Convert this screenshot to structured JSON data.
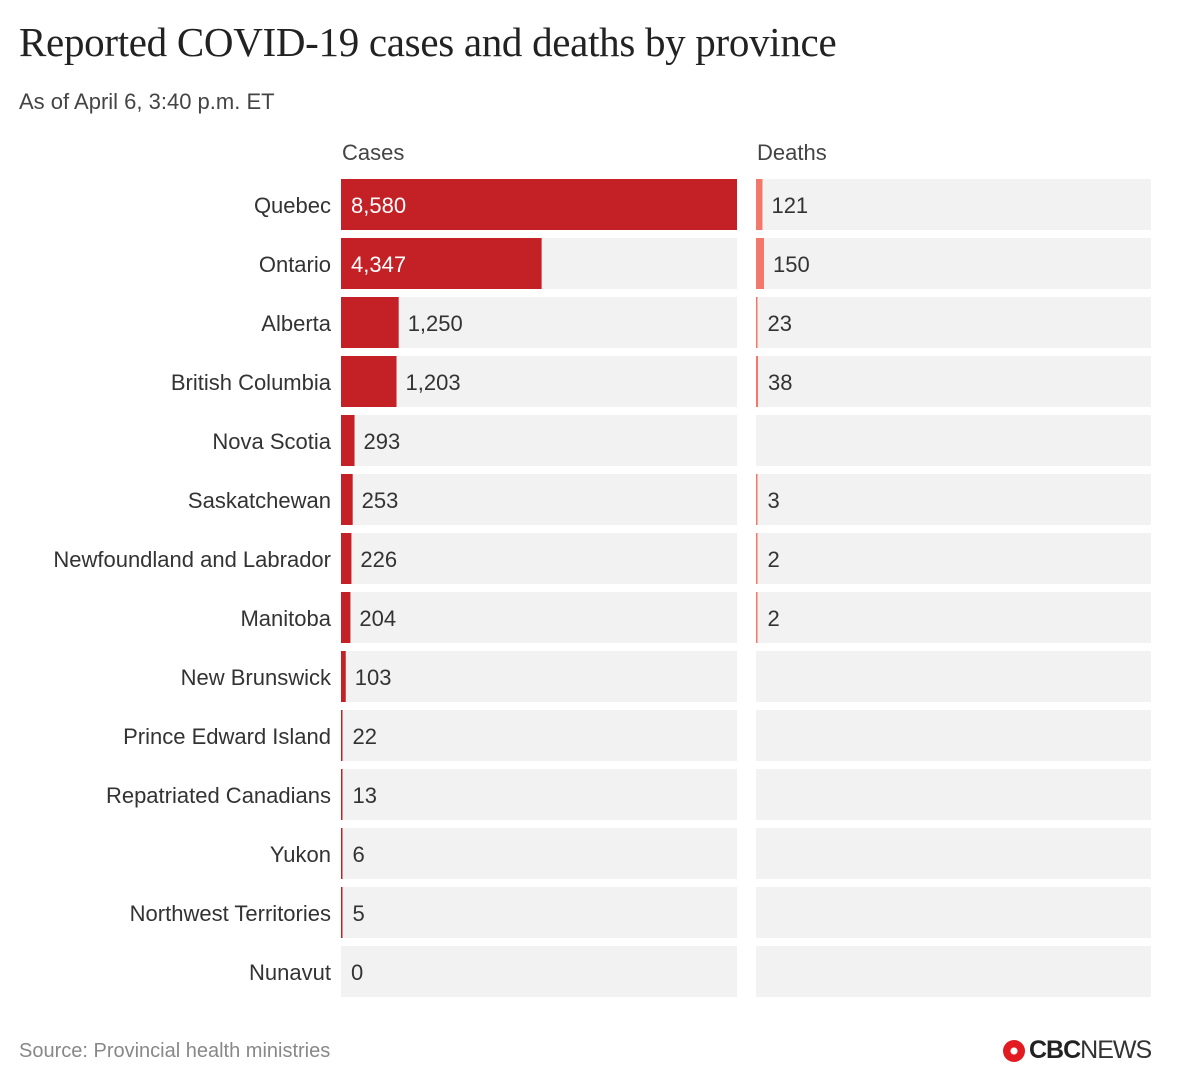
{
  "title": "Reported COVID-19 cases and deaths by province",
  "subtitle": "As of April 6, 3:40 p.m. ET",
  "source": "Source: Provincial health ministries",
  "logo": {
    "brand": "CBC",
    "suffix": "NEWS"
  },
  "colors": {
    "cases": "#c42127",
    "deaths": "#f4776b",
    "background_band": "#f2f2f2"
  },
  "chart_data": {
    "type": "bar",
    "orientation": "horizontal",
    "categories": [
      "Quebec",
      "Ontario",
      "Alberta",
      "British Columbia",
      "Nova Scotia",
      "Saskatchewan",
      "Newfoundland and Labrador",
      "Manitoba",
      "New Brunswick",
      "Prince Edward Island",
      "Repatriated Canadians",
      "Yukon",
      "Northwest Territories",
      "Nunavut"
    ],
    "series": [
      {
        "name": "Cases",
        "values": [
          8580,
          4347,
          1250,
          1203,
          293,
          253,
          226,
          204,
          103,
          22,
          13,
          6,
          5,
          0
        ],
        "labels": [
          "8,580",
          "4,347",
          "1,250",
          "1,203",
          "293",
          "253",
          "226",
          "204",
          "103",
          "22",
          "13",
          "6",
          "5",
          "0"
        ]
      },
      {
        "name": "Deaths",
        "values": [
          121,
          150,
          23,
          38,
          null,
          3,
          2,
          2,
          null,
          null,
          null,
          null,
          null,
          null
        ],
        "labels": [
          "121",
          "150",
          "23",
          "38",
          "",
          "3",
          "2",
          "2",
          "",
          "",
          "",
          "",
          "",
          ""
        ]
      }
    ],
    "xlim_cases": [
      0,
      8580
    ],
    "xlim_deaths": [
      0,
      7400
    ],
    "grid": false
  }
}
